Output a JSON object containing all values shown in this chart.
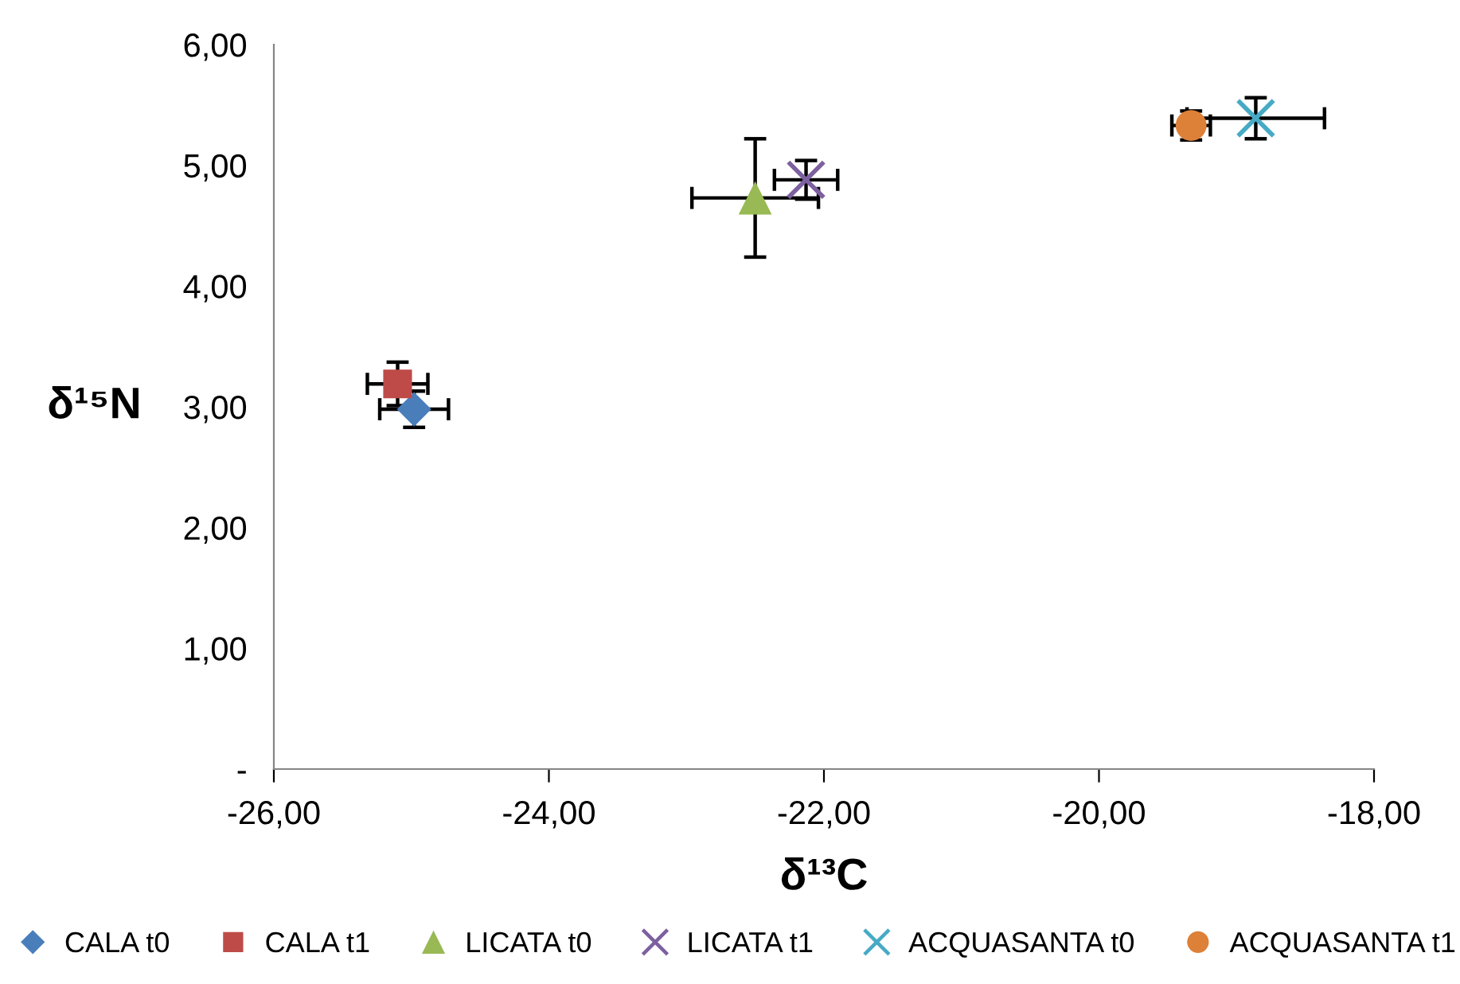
{
  "chart_data": {
    "type": "scatter",
    "xlabel": "δ¹³C",
    "ylabel": "δ¹⁵N",
    "xlim": [
      -26,
      -18
    ],
    "ylim": [
      0,
      6
    ],
    "xticks": [
      {
        "value": -26,
        "label": "-26,00"
      },
      {
        "value": -24,
        "label": "-24,00"
      },
      {
        "value": -22,
        "label": "-22,00"
      },
      {
        "value": -20,
        "label": "-20,00"
      },
      {
        "value": -18,
        "label": "-18,00"
      }
    ],
    "yticks": [
      {
        "value": 0,
        "label": "-"
      },
      {
        "value": 1,
        "label": "1,00"
      },
      {
        "value": 2,
        "label": "2,00"
      },
      {
        "value": 3,
        "label": "3,00"
      },
      {
        "value": 4,
        "label": "4,00"
      },
      {
        "value": 5,
        "label": "5,00"
      },
      {
        "value": 6,
        "label": "6,00"
      }
    ],
    "grid": false,
    "legend": "bottom",
    "series": [
      {
        "name": "CALA t0",
        "color": "#4a7ebb",
        "marker": "diamond",
        "x": [
          -24.98
        ],
        "values": [
          2.98
        ],
        "errors": [
          0.15
        ],
        "xerrors": [
          0.25
        ]
      },
      {
        "name": "CALA t1",
        "color": "#be4b48",
        "marker": "square",
        "x": [
          -25.1
        ],
        "values": [
          3.19
        ],
        "errors": [
          0.18
        ],
        "xerrors": [
          0.22
        ]
      },
      {
        "name": "LICATA t0",
        "color": "#98b954",
        "marker": "triangle",
        "x": [
          -22.5
        ],
        "values": [
          4.73
        ],
        "errors": [
          0.49
        ],
        "xerrors": [
          0.46
        ]
      },
      {
        "name": "LICATA t1",
        "color": "#7d60a0",
        "marker": "cross",
        "x": [
          -22.13
        ],
        "values": [
          4.88
        ],
        "errors": [
          0.16
        ],
        "xerrors": [
          0.23
        ]
      },
      {
        "name": "ACQUASANTA t0",
        "color": "#46aac5",
        "marker": "cross",
        "x": [
          -18.86
        ],
        "values": [
          5.39
        ],
        "errors": [
          0.17
        ],
        "xerrors": [
          0.5
        ]
      },
      {
        "name": "ACQUASANTA t1",
        "color": "#dd8038",
        "marker": "circle",
        "x": [
          -19.33
        ],
        "values": [
          5.33
        ],
        "errors": [
          0.12
        ],
        "xerrors": [
          0.14
        ]
      }
    ]
  }
}
